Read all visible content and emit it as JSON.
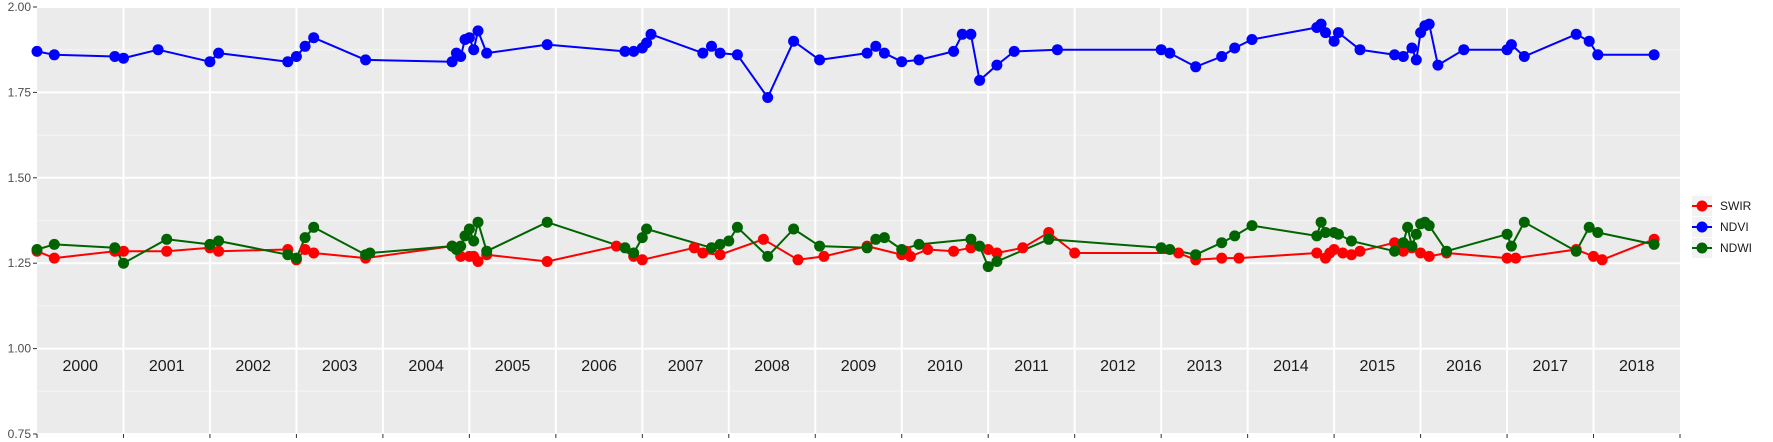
{
  "chart_data": {
    "type": "line",
    "title": "",
    "xlabel": "",
    "ylabel": "",
    "xlim": [
      1999.5,
      2018.5
    ],
    "ylim": [
      0.75,
      2.0
    ],
    "yticks": [
      0.75,
      1.0,
      1.25,
      1.5,
      1.75,
      2.0
    ],
    "ytick_labels": [
      "0.75",
      "1.00",
      "1.25",
      "1.50",
      "1.75",
      "2.00"
    ],
    "year_labels": [
      "2000",
      "2001",
      "2002",
      "2003",
      "2004",
      "2005",
      "2006",
      "2007",
      "2008",
      "2009",
      "2010",
      "2011",
      "2012",
      "2013",
      "2014",
      "2015",
      "2016",
      "2017",
      "2018"
    ],
    "grid": true,
    "legend_position": "right",
    "series": [
      {
        "name": "SWIR",
        "color": "#ff0000",
        "x": [
          1999.5,
          1999.7,
          2000.4,
          2000.5,
          2001.0,
          2001.5,
          2001.6,
          2002.4,
          2002.5,
          2002.6,
          2002.7,
          2003.3,
          2004.3,
          2004.4,
          2004.5,
          2004.55,
          2004.6,
          2004.7,
          2005.4,
          2006.2,
          2006.4,
          2006.5,
          2007.1,
          2007.2,
          2007.4,
          2007.9,
          2008.3,
          2008.6,
          2009.1,
          2009.5,
          2009.55,
          2009.6,
          2009.8,
          2010.1,
          2010.3,
          2010.5,
          2010.6,
          2010.9,
          2011.2,
          2011.5,
          2012.7,
          2012.9,
          2013.2,
          2013.4,
          2014.3,
          2014.4,
          2014.45,
          2014.5,
          2014.6,
          2014.7,
          2014.8,
          2015.2,
          2015.3,
          2015.35,
          2015.4,
          2015.5,
          2015.6,
          2015.8,
          2016.5,
          2016.6,
          2017.3,
          2017.5,
          2017.6,
          2018.2
        ],
        "y": [
          1.285,
          1.265,
          1.285,
          1.285,
          1.285,
          1.295,
          1.285,
          1.29,
          1.26,
          1.29,
          1.28,
          1.265,
          1.3,
          1.27,
          1.27,
          1.27,
          1.255,
          1.275,
          1.255,
          1.3,
          1.27,
          1.26,
          1.295,
          1.28,
          1.275,
          1.32,
          1.26,
          1.27,
          1.3,
          1.275,
          1.285,
          1.27,
          1.29,
          1.285,
          1.295,
          1.29,
          1.28,
          1.295,
          1.34,
          1.28,
          1.28,
          1.26,
          1.265,
          1.265,
          1.28,
          1.265,
          1.28,
          1.29,
          1.28,
          1.275,
          1.285,
          1.31,
          1.285,
          1.3,
          1.295,
          1.28,
          1.27,
          1.28,
          1.265,
          1.265,
          1.29,
          1.27,
          1.26,
          1.32
        ]
      },
      {
        "name": "NDVI",
        "color": "#0000ff",
        "x": [
          1999.5,
          1999.7,
          2000.4,
          2000.5,
          2000.9,
          2001.5,
          2001.6,
          2002.4,
          2002.5,
          2002.6,
          2002.7,
          2003.3,
          2004.3,
          2004.35,
          2004.4,
          2004.45,
          2004.5,
          2004.55,
          2004.6,
          2004.7,
          2005.4,
          2006.3,
          2006.4,
          2006.5,
          2006.55,
          2006.6,
          2007.2,
          2007.3,
          2007.4,
          2007.6,
          2007.95,
          2008.25,
          2008.55,
          2009.1,
          2009.2,
          2009.3,
          2009.5,
          2009.7,
          2010.1,
          2010.2,
          2010.3,
          2010.4,
          2010.6,
          2010.8,
          2011.3,
          2012.5,
          2012.6,
          2012.9,
          2013.2,
          2013.35,
          2013.55,
          2014.3,
          2014.35,
          2014.4,
          2014.5,
          2014.55,
          2014.8,
          2015.2,
          2015.3,
          2015.4,
          2015.45,
          2015.5,
          2015.55,
          2015.6,
          2015.7,
          2016.0,
          2016.5,
          2016.55,
          2016.7,
          2017.3,
          2017.45,
          2017.55,
          2018.2
        ],
        "y": [
          1.87,
          1.86,
          1.855,
          1.85,
          1.875,
          1.84,
          1.865,
          1.84,
          1.855,
          1.885,
          1.91,
          1.845,
          1.84,
          1.865,
          1.855,
          1.905,
          1.91,
          1.875,
          1.93,
          1.865,
          1.89,
          1.87,
          1.87,
          1.88,
          1.895,
          1.92,
          1.865,
          1.885,
          1.865,
          1.86,
          1.735,
          1.9,
          1.845,
          1.865,
          1.885,
          1.865,
          1.84,
          1.845,
          1.87,
          1.92,
          1.92,
          1.785,
          1.83,
          1.87,
          1.875,
          1.875,
          1.865,
          1.825,
          1.855,
          1.88,
          1.905,
          1.94,
          1.95,
          1.925,
          1.9,
          1.925,
          1.875,
          1.86,
          1.855,
          1.88,
          1.845,
          1.925,
          1.945,
          1.95,
          1.83,
          1.875,
          1.875,
          1.89,
          1.855,
          1.92,
          1.9,
          1.86,
          1.86
        ]
      },
      {
        "name": "NDWI",
        "color": "#006400",
        "x": [
          1999.5,
          1999.7,
          2000.4,
          2000.5,
          2001.0,
          2001.5,
          2001.6,
          2002.4,
          2002.5,
          2002.6,
          2002.7,
          2003.3,
          2003.35,
          2004.3,
          2004.35,
          2004.4,
          2004.45,
          2004.5,
          2004.55,
          2004.6,
          2004.7,
          2005.4,
          2006.3,
          2006.4,
          2006.5,
          2006.55,
          2007.3,
          2007.4,
          2007.5,
          2007.6,
          2007.95,
          2008.25,
          2008.55,
          2009.1,
          2009.2,
          2009.3,
          2009.5,
          2009.7,
          2010.3,
          2010.4,
          2010.5,
          2010.6,
          2011.2,
          2012.5,
          2012.6,
          2012.9,
          2013.2,
          2013.35,
          2013.55,
          2014.3,
          2014.35,
          2014.4,
          2014.5,
          2014.55,
          2014.7,
          2015.2,
          2015.3,
          2015.35,
          2015.4,
          2015.45,
          2015.5,
          2015.55,
          2015.6,
          2015.8,
          2016.5,
          2016.55,
          2016.7,
          2017.3,
          2017.45,
          2017.55,
          2018.2
        ],
        "y": [
          1.29,
          1.305,
          1.295,
          1.25,
          1.32,
          1.305,
          1.315,
          1.275,
          1.265,
          1.325,
          1.355,
          1.275,
          1.28,
          1.3,
          1.29,
          1.3,
          1.33,
          1.35,
          1.315,
          1.37,
          1.285,
          1.37,
          1.295,
          1.28,
          1.325,
          1.35,
          1.295,
          1.305,
          1.315,
          1.355,
          1.27,
          1.35,
          1.3,
          1.295,
          1.32,
          1.325,
          1.29,
          1.305,
          1.32,
          1.3,
          1.24,
          1.255,
          1.32,
          1.295,
          1.29,
          1.275,
          1.31,
          1.33,
          1.36,
          1.33,
          1.37,
          1.34,
          1.34,
          1.335,
          1.315,
          1.285,
          1.31,
          1.355,
          1.3,
          1.335,
          1.365,
          1.37,
          1.36,
          1.285,
          1.335,
          1.3,
          1.37,
          1.285,
          1.355,
          1.34,
          1.305
        ]
      }
    ],
    "legend_order": [
      "SWIR",
      "NDVI",
      "NDWI"
    ]
  }
}
